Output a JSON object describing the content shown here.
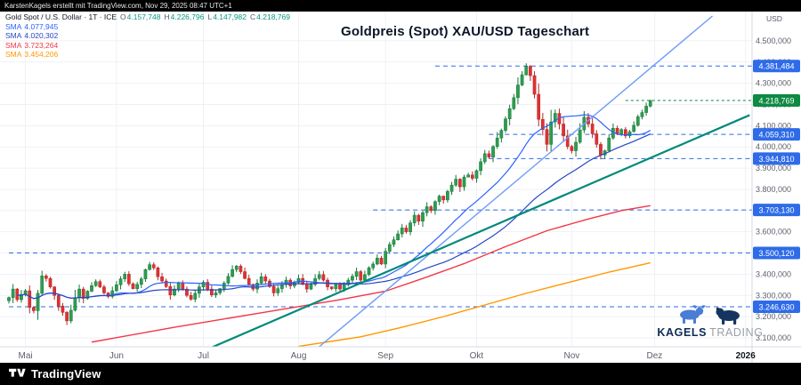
{
  "top_bar": {
    "attribution": "KarstenKagels erstellt mit TradingView.com, Nov 29, 2025 08:47 UTC+1"
  },
  "header": {
    "symbol_line": "Gold Spot / U.S. Dollar · 1T · ICE",
    "ohlc": [
      {
        "k": "O",
        "v": "4.157,748"
      },
      {
        "k": "H",
        "v": "4.226,796"
      },
      {
        "k": "L",
        "v": "4.147,982"
      },
      {
        "k": "C",
        "v": "4.218,769"
      }
    ],
    "smas": [
      {
        "label": "SMA",
        "value": "4.077,945",
        "color": "#2962ff"
      },
      {
        "label": "SMA",
        "value": "4.020,302",
        "color": "#2746c4"
      },
      {
        "label": "SMA",
        "value": "3.723,264",
        "color": "#f23645"
      },
      {
        "label": "SMA",
        "value": "3.454,206",
        "color": "#ff9800"
      }
    ]
  },
  "title": "Goldpreis (Spot) XAU/USD Tageschart",
  "watermark": {
    "name_bold": "KAGELS",
    "name_light": "TRADING"
  },
  "bottom_bar": {
    "brand": "TradingView"
  },
  "chart_data": {
    "type": "candlestick",
    "symbol": "Gold Spot / U.S. Dollar",
    "interval": "1T",
    "exchange": "ICE",
    "currency": "USD",
    "title": "Goldpreis (Spot) XAU/USD Tageschart",
    "y_range": [
      3058,
      4617
    ],
    "grid": true,
    "closes": [
      3290,
      3330,
      3280,
      3305,
      3322,
      3243,
      3228,
      3310,
      3392,
      3380,
      3340,
      3300,
      3250,
      3220,
      3180,
      3230,
      3290,
      3330,
      3286,
      3320,
      3346,
      3365,
      3340,
      3312,
      3295,
      3322,
      3350,
      3378,
      3400,
      3355,
      3332,
      3352,
      3378,
      3422,
      3445,
      3430,
      3388,
      3368,
      3342,
      3302,
      3330,
      3358,
      3330,
      3300,
      3282,
      3310,
      3340,
      3362,
      3330,
      3302,
      3312,
      3332,
      3358,
      3390,
      3422,
      3438,
      3412,
      3380,
      3352,
      3330,
      3358,
      3388,
      3368,
      3342,
      3312,
      3332,
      3352,
      3372,
      3345,
      3360,
      3380,
      3352,
      3330,
      3352,
      3380,
      3398,
      3372,
      3340,
      3332,
      3352,
      3330,
      3350,
      3372,
      3390,
      3412,
      3372,
      3398,
      3430,
      3448,
      3476,
      3448,
      3508,
      3540,
      3562,
      3590,
      3618,
      3600,
      3642,
      3678,
      3650,
      3690,
      3718,
      3700,
      3742,
      3768,
      3750,
      3790,
      3820,
      3848,
      3812,
      3858,
      3868,
      3852,
      3888,
      3930,
      3968,
      3952,
      4002,
      4042,
      4078,
      4132,
      4180,
      4232,
      4292,
      4340,
      4380,
      4336,
      4248,
      4130,
      4082,
      4012,
      4118,
      4158,
      4108,
      4052,
      4002,
      3982,
      4022,
      4080,
      4140,
      4108,
      4062,
      4012,
      3962,
      3982,
      4042,
      4088,
      4060,
      4082,
      4052,
      4072,
      4102,
      4142,
      4162,
      4192,
      4218.769
    ],
    "x_ticks": [
      {
        "label": "Mai",
        "index": 4
      },
      {
        "label": "Jun",
        "index": 26
      },
      {
        "label": "Jul",
        "index": 47
      },
      {
        "label": "Aug",
        "index": 70
      },
      {
        "label": "Sep",
        "index": 91
      },
      {
        "label": "Okt",
        "index": 113
      },
      {
        "label": "Nov",
        "index": 136
      },
      {
        "label": "Dez",
        "index": 156
      },
      {
        "label": "2026",
        "index": 178,
        "bold": true
      }
    ],
    "y_ticks": [
      {
        "value": 4500,
        "label": "4.500,000"
      },
      {
        "value": 4400,
        "label": "4.400,000"
      },
      {
        "value": 4300,
        "label": "4.300,000"
      },
      {
        "value": 4200,
        "label": "4.200,000"
      },
      {
        "value": 4100,
        "label": "4.100,000"
      },
      {
        "value": 4000,
        "label": "4.000,000"
      },
      {
        "value": 3900,
        "label": "3.900,000"
      },
      {
        "value": 3800,
        "label": "3.800,000"
      },
      {
        "value": 3700,
        "label": "3.700,000"
      },
      {
        "value": 3600,
        "label": "3.600,000"
      },
      {
        "value": 3500,
        "label": "3.500,000"
      },
      {
        "value": 3400,
        "label": "3.400,000"
      },
      {
        "value": 3300,
        "label": "3.300,000"
      },
      {
        "value": 3200,
        "label": "3.200,000"
      },
      {
        "value": 3100,
        "label": "3.100,000"
      }
    ],
    "levels": [
      {
        "label": "4.381,484",
        "value": 4381.484,
        "start_index": 103
      },
      {
        "label": "4.059,310",
        "value": 4059.31,
        "start_index": 116
      },
      {
        "label": "3.944,810",
        "value": 3944.81,
        "start_index": 116
      },
      {
        "label": "3.703,130",
        "value": 3703.13,
        "start_index": 88
      },
      {
        "label": "3.500,120",
        "value": 3500.12,
        "start_index": 0
      },
      {
        "label": "3.246,630",
        "value": 3246.63,
        "start_index": 0
      }
    ],
    "level_color": "#2e6be8",
    "current_price": {
      "label": "4.218,769",
      "value": 4218.769,
      "color": "#0e8a43"
    },
    "overlays": [
      {
        "name": "sma-20",
        "type": "sma",
        "window": 20,
        "color": "#2962ff",
        "width": 1.2
      },
      {
        "name": "sma-50",
        "type": "sma",
        "window": 50,
        "color": "#2746c4",
        "width": 1.2
      },
      {
        "name": "sma-100",
        "type": "points",
        "color": "#f23645",
        "width": 1.4,
        "points": [
          [
            20,
            3080
          ],
          [
            40,
            3150
          ],
          [
            60,
            3215
          ],
          [
            80,
            3280
          ],
          [
            91,
            3320
          ],
          [
            100,
            3380
          ],
          [
            110,
            3450
          ],
          [
            120,
            3530
          ],
          [
            130,
            3605
          ],
          [
            140,
            3660
          ],
          [
            148,
            3700
          ],
          [
            155,
            3723
          ]
        ]
      },
      {
        "name": "sma-200",
        "type": "points",
        "color": "#ff9800",
        "width": 1.4,
        "points": [
          [
            70,
            3060
          ],
          [
            85,
            3105
          ],
          [
            95,
            3150
          ],
          [
            105,
            3200
          ],
          [
            115,
            3255
          ],
          [
            125,
            3310
          ],
          [
            135,
            3360
          ],
          [
            145,
            3410
          ],
          [
            155,
            3454
          ]
        ]
      }
    ],
    "trendlines": [
      {
        "name": "steep-uptrend-line",
        "color": "#6f9bf7",
        "width": 1.4,
        "points": [
          [
            64,
            2878
          ],
          [
            170,
            4617
          ]
        ]
      },
      {
        "name": "support-uptrend-line",
        "color": "#00897b",
        "width": 2.2,
        "points": [
          [
            28,
            2878
          ],
          [
            179,
            4150
          ]
        ]
      }
    ],
    "colors": {
      "up": "#2e9e4f",
      "up_border": "#17763a",
      "down": "#e03131",
      "down_border": "#b32828",
      "grid": "#eef1f6",
      "axis_text": "#5d606b",
      "ohlc_value": "#089981",
      "separator": "#d6d9e0",
      "year_text": "#131722"
    }
  }
}
